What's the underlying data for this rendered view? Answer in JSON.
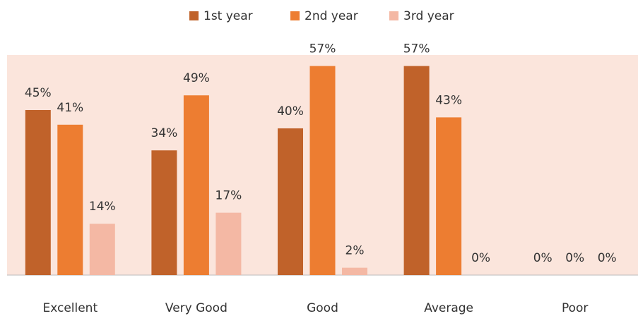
{
  "chart_data": {
    "type": "bar",
    "categories": [
      "Excellent",
      "Very Good",
      "Good",
      "Average",
      "Poor"
    ],
    "series": [
      {
        "name": "1st year",
        "color": "#c0622a",
        "values": [
          45,
          34,
          40,
          57,
          0
        ],
        "value_labels": [
          "45%",
          "34%",
          "40%",
          "57%",
          "0%"
        ]
      },
      {
        "name": "2nd year",
        "color": "#ed7d31",
        "values": [
          41,
          49,
          57,
          43,
          0
        ],
        "value_labels": [
          "41%",
          "49%",
          "57%",
          "43%",
          "0%"
        ]
      },
      {
        "name": "3rd year",
        "color": "#f4b8a4",
        "values": [
          14,
          17,
          2,
          0,
          0
        ],
        "value_labels": [
          "14%",
          "17%",
          "2%",
          "0%",
          "0%"
        ]
      }
    ],
    "ylim": [
      0,
      60
    ],
    "legend": "top"
  }
}
